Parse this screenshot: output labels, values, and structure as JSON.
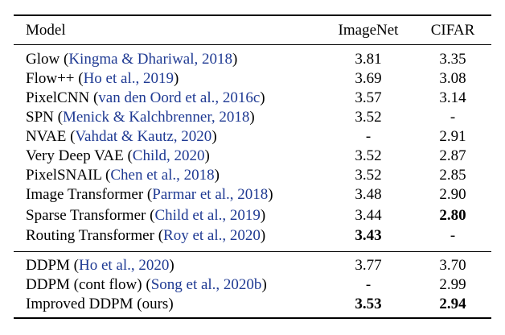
{
  "header": {
    "model": "Model",
    "imagenet": "ImageNet",
    "cifar": "CIFAR"
  },
  "rows": [
    {
      "name": "Glow",
      "cite": "Kingma & Dhariwal, 2018",
      "imagenet": "3.81",
      "cifar": "3.35"
    },
    {
      "name": "Flow++",
      "cite": "Ho et al., 2019",
      "imagenet": "3.69",
      "cifar": "3.08"
    },
    {
      "name": "PixelCNN",
      "cite": "van den Oord et al., 2016c",
      "imagenet": "3.57",
      "cifar": "3.14"
    },
    {
      "name": "SPN",
      "cite": "Menick & Kalchbrenner, 2018",
      "imagenet": "3.52",
      "cifar": "-"
    },
    {
      "name": "NVAE",
      "cite": "Vahdat & Kautz, 2020",
      "imagenet": "-",
      "cifar": "2.91"
    },
    {
      "name": "Very Deep VAE",
      "cite": "Child, 2020",
      "imagenet": "3.52",
      "cifar": "2.87"
    },
    {
      "name": "PixelSNAIL",
      "cite": "Chen et al., 2018",
      "imagenet": "3.52",
      "cifar": "2.85"
    },
    {
      "name": "Image Transformer",
      "cite": "Parmar et al., 2018",
      "imagenet": "3.48",
      "cifar": "2.90"
    },
    {
      "name": "Sparse Transformer",
      "cite": "Child et al., 2019",
      "imagenet": "3.44",
      "cifar": "2.80"
    },
    {
      "name": "Routing Transformer",
      "cite": "Roy et al., 2020",
      "imagenet": "3.43",
      "cifar": "-"
    },
    {
      "name": "DDPM",
      "cite": "Ho et al., 2020",
      "imagenet": "3.77",
      "cifar": "3.70"
    },
    {
      "name": "DDPM (cont flow)",
      "cite": "Song et al., 2020b",
      "imagenet": "-",
      "cifar": "2.99"
    },
    {
      "name": "Improved DDPM (ours)",
      "cite": "",
      "imagenet": "3.53",
      "cifar": "2.94"
    }
  ]
}
